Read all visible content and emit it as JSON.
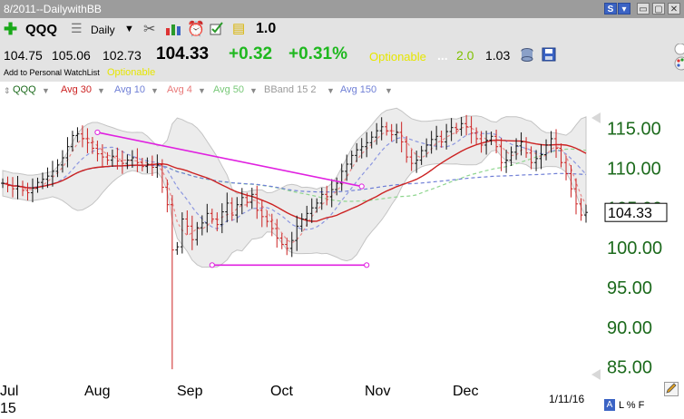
{
  "window": {
    "title": "8/2011--DailywithBB"
  },
  "toolbar": {
    "symbol": "QQQ",
    "period": "Daily",
    "multiplier": "1.0",
    "open": "104.75",
    "high": "105.06",
    "low": "102.73",
    "last": "104.33",
    "change": "+0.32",
    "change_pct": "+0.31%",
    "optionable_1": "Optionable",
    "ellipsis": "...",
    "value_a": "2.0",
    "value_b": "1.03",
    "add_watchlist": "Add to Personal WatchList",
    "optionable_2": "Optionable"
  },
  "legend": [
    {
      "label": "QQQ",
      "color": "#1c6a1c"
    },
    {
      "label": "Avg 30",
      "color": "#cc2222"
    },
    {
      "label": "Avg 10",
      "color": "#6f7fd6"
    },
    {
      "label": "Avg 4",
      "color": "#e87878"
    },
    {
      "label": "Avg 50",
      "color": "#78c878"
    },
    {
      "label": "BBand 15 2",
      "color": "#9a9a9a"
    },
    {
      "label": "Avg 150",
      "color": "#6f7fd6"
    }
  ],
  "colors": {
    "up": "#111111",
    "down": "#cc2222",
    "trendline": "#e020e0",
    "axis_text": "#1c6a1c",
    "band_fill": "#ececec"
  },
  "chart_data": {
    "type": "ohlc",
    "symbol": "QQQ",
    "period": "Daily",
    "last_price": 104.33,
    "ylim": [
      84.5,
      118.5
    ],
    "y_ticks": [
      "115.00",
      "110.00",
      "105.00",
      "100.00",
      "95.00",
      "90.00",
      "85.00"
    ],
    "x_months": [
      "Jul",
      "Aug",
      "Sep",
      "Oct",
      "Nov",
      "Dec"
    ],
    "x_year_label": "15",
    "date_label": "1/11/16",
    "closes": [
      108.0,
      107.7,
      107.3,
      107.6,
      107.1,
      106.8,
      107.4,
      108.1,
      108.5,
      108.9,
      109.5,
      110.3,
      111.2,
      112.6,
      114.0,
      114.2,
      113.6,
      113.1,
      112.4,
      111.7,
      111.3,
      110.9,
      111.4,
      110.8,
      110.5,
      110.9,
      111.2,
      110.6,
      110.1,
      110.4,
      110.0,
      110.3,
      107.5,
      105.3,
      99.6,
      100.0,
      103.5,
      102.6,
      100.9,
      102.4,
      103.0,
      104.2,
      103.5,
      102.8,
      104.4,
      105.5,
      104.0,
      105.3,
      106.2,
      105.6,
      106.6,
      104.6,
      103.8,
      103.2,
      102.3,
      101.1,
      100.3,
      99.8,
      100.8,
      102.6,
      103.5,
      104.2,
      104.9,
      105.5,
      106.6,
      106.3,
      107.2,
      108.0,
      109.5,
      110.4,
      111.5,
      112.2,
      112.6,
      113.1,
      113.8,
      114.6,
      115.1,
      114.6,
      114.1,
      114.4,
      113.2,
      111.3,
      110.5,
      110.9,
      112.1,
      112.8,
      113.5,
      113.9,
      113.2,
      114.5,
      115.0,
      114.8,
      115.5,
      115.1,
      114.3,
      113.6,
      112.8,
      113.4,
      113.9,
      112.6,
      110.6,
      110.9,
      111.9,
      112.7,
      113.2,
      111.8,
      110.6,
      111.1,
      111.6,
      112.8,
      113.6,
      112.4,
      110.6,
      109.2,
      107.3,
      105.4,
      104.0,
      104.33
    ],
    "trendlines": [
      {
        "from": [
          "2015-07-22",
          114.4
        ],
        "to": [
          "2015-10-05",
          107.6
        ]
      },
      {
        "from": [
          "2015-08-24",
          97.7
        ],
        "to": [
          "2015-10-06",
          97.7
        ]
      }
    ]
  }
}
